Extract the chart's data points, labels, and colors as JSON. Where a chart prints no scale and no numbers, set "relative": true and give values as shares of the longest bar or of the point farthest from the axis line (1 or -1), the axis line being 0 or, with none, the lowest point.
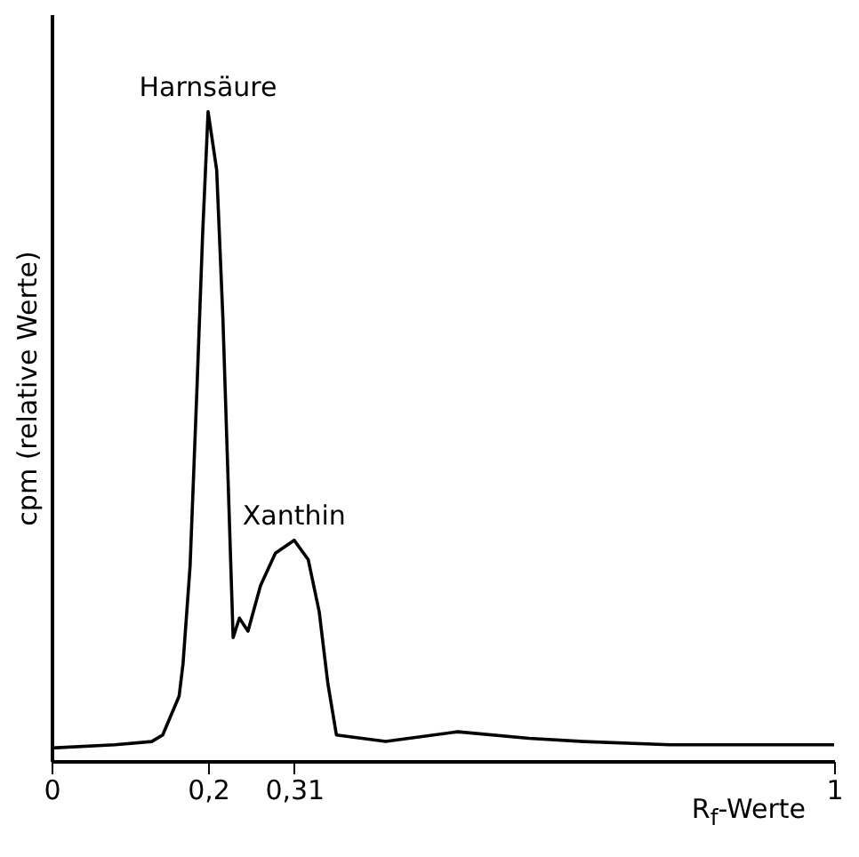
{
  "chart_data": {
    "type": "line",
    "relative": true,
    "xlabel": "R$_{f}$-Werte",
    "ylabel": "cpm (relative Werte)",
    "grid": false,
    "marker": "none",
    "xlim": [
      0,
      1
    ],
    "xticks": [
      0,
      {
        "value": 0.2,
        "label": "0,2"
      },
      {
        "value": 0.31,
        "label": "0,31"
      },
      1
    ],
    "x": [
      0,
      0.081,
      0.128,
      0.142,
      0.163,
      0.168,
      0.177,
      0.186,
      0.193,
      0.2,
      0.211,
      0.219,
      0.232,
      0.24,
      0.251,
      0.267,
      0.286,
      0.31,
      0.328,
      0.342,
      0.353,
      0.364,
      0.427,
      0.519,
      0.61,
      0.68,
      0.79,
      0.88,
      1
    ],
    "series": [
      {
        "color": "#000000",
        "values": [
          0.02,
          0.025,
          0.03,
          0.04,
          0.1,
          0.15,
          0.3,
          0.58,
          0.81,
          1.0,
          0.91,
          0.68,
          0.19,
          0.22,
          0.2,
          0.27,
          0.32,
          0.34,
          0.31,
          0.23,
          0.12,
          0.04,
          0.03,
          0.045,
          0.035,
          0.03,
          0.025,
          0.025,
          0.025
        ]
      }
    ],
    "annotations": [
      {
        "text": "Harnsäure",
        "x": 0.2,
        "y": 1.0
      },
      {
        "text": "Xanthin",
        "x": 0.31,
        "y": 0.34
      }
    ]
  }
}
